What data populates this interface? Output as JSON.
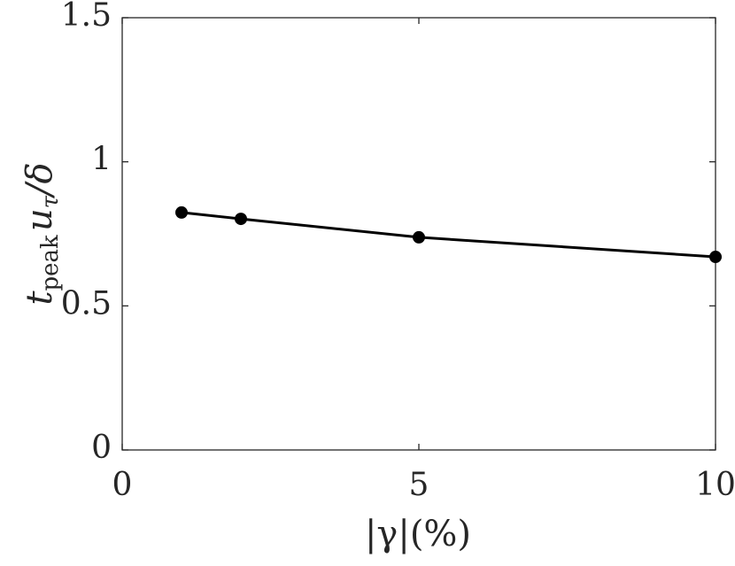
{
  "chart_data": {
    "type": "line",
    "xlabel": "|γ|(%)",
    "ylabel": [
      "t",
      "peak",
      "u",
      "τ",
      "/δ"
    ],
    "x": [
      1,
      2,
      5,
      10
    ],
    "series": [
      {
        "color": "#000000",
        "values": [
          0.824,
          0.802,
          0.738,
          0.67
        ]
      }
    ],
    "xlim": [
      0,
      10
    ],
    "xticks": [
      0,
      5,
      10
    ],
    "ylim": [
      0,
      1.5
    ],
    "yticks": [
      0,
      0.5,
      1,
      1.5
    ],
    "grid": false
  }
}
